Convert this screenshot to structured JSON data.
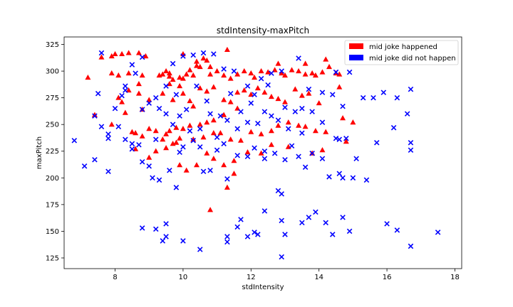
{
  "chart_data": {
    "type": "scatter",
    "title": "stdIntensity-maxPitch",
    "xlabel": "stdIntensity",
    "ylabel": "maxPitch",
    "xlim": [
      6.5,
      18.2
    ],
    "ylim": [
      115,
      332
    ],
    "xticks": [
      8,
      10,
      12,
      14,
      16,
      18
    ],
    "yticks": [
      125,
      150,
      175,
      200,
      225,
      250,
      275,
      300,
      325
    ],
    "legend_position": "top-right",
    "series": [
      {
        "name": "mid joke happened",
        "color": "#ff0000",
        "marker": "triangle",
        "points": [
          [
            7.2,
            294
          ],
          [
            7.4,
            259
          ],
          [
            7.6,
            313
          ],
          [
            7.9,
            314
          ],
          [
            8.0,
            316
          ],
          [
            8.2,
            316
          ],
          [
            8.4,
            317
          ],
          [
            8.7,
            317
          ],
          [
            8.9,
            314
          ],
          [
            7.9,
            298
          ],
          [
            8.1,
            296
          ],
          [
            8.4,
            298
          ],
          [
            8.8,
            296
          ],
          [
            8.7,
            288
          ],
          [
            8.4,
            282
          ],
          [
            8.7,
            279
          ],
          [
            8.1,
            275
          ],
          [
            8.2,
            271
          ],
          [
            8.3,
            261
          ],
          [
            8.8,
            264
          ],
          [
            7.9,
            250
          ],
          [
            8.5,
            243
          ],
          [
            8.6,
            242
          ],
          [
            8.6,
            227
          ],
          [
            8.8,
            239
          ],
          [
            9.0,
            246
          ],
          [
            9.2,
            244
          ],
          [
            9.4,
            236
          ],
          [
            9.2,
            225
          ],
          [
            9.0,
            219
          ],
          [
            9.5,
            228
          ],
          [
            9.7,
            232
          ],
          [
            9.8,
            233
          ],
          [
            9.3,
            296
          ],
          [
            9.4,
            297
          ],
          [
            9.5,
            300
          ],
          [
            9.6,
            298
          ],
          [
            9.6,
            288
          ],
          [
            9.7,
            292
          ],
          [
            9.9,
            294
          ],
          [
            10.0,
            293
          ],
          [
            10.1,
            297
          ],
          [
            10.2,
            301
          ],
          [
            10.3,
            296
          ],
          [
            10.4,
            305
          ],
          [
            10.5,
            304
          ],
          [
            10.6,
            312
          ],
          [
            10.7,
            310
          ],
          [
            10.8,
            304
          ],
          [
            10.8,
            297
          ],
          [
            11.0,
            300
          ],
          [
            11.2,
            296
          ],
          [
            11.4,
            293
          ],
          [
            11.6,
            297
          ],
          [
            11.8,
            300
          ],
          [
            12.0,
            298
          ],
          [
            12.1,
            294
          ],
          [
            12.3,
            300
          ],
          [
            12.5,
            299
          ],
          [
            12.7,
            301
          ],
          [
            12.9,
            298
          ],
          [
            13.0,
            296
          ],
          [
            13.2,
            301
          ],
          [
            13.4,
            300
          ],
          [
            13.6,
            297
          ],
          [
            13.8,
            298
          ],
          [
            13.9,
            296
          ],
          [
            14.1,
            299
          ],
          [
            14.3,
            304
          ],
          [
            14.5,
            298
          ],
          [
            14.6,
            297
          ],
          [
            14.2,
            311
          ],
          [
            9.0,
            273
          ],
          [
            9.4,
            279
          ],
          [
            9.7,
            273
          ],
          [
            9.9,
            286
          ],
          [
            10.0,
            279
          ],
          [
            10.2,
            272
          ],
          [
            10.3,
            267
          ],
          [
            10.5,
            284
          ],
          [
            10.7,
            281
          ],
          [
            10.9,
            285
          ],
          [
            11.2,
            273
          ],
          [
            11.4,
            271
          ],
          [
            11.6,
            280
          ],
          [
            11.8,
            282
          ],
          [
            12.0,
            278
          ],
          [
            12.2,
            284
          ],
          [
            12.4,
            280
          ],
          [
            12.6,
            276
          ],
          [
            12.8,
            274
          ],
          [
            13.0,
            271
          ],
          [
            13.3,
            283
          ],
          [
            13.5,
            277
          ],
          [
            13.7,
            279
          ],
          [
            14.0,
            270
          ],
          [
            14.6,
            285
          ],
          [
            11.6,
            265
          ],
          [
            11.2,
            259
          ],
          [
            10.9,
            254
          ],
          [
            10.7,
            252
          ],
          [
            10.5,
            250
          ],
          [
            10.2,
            249
          ],
          [
            10.0,
            246
          ],
          [
            9.8,
            247
          ],
          [
            9.6,
            244
          ],
          [
            9.5,
            241
          ],
          [
            9.9,
            237
          ],
          [
            10.3,
            236
          ],
          [
            10.6,
            238
          ],
          [
            10.9,
            242
          ],
          [
            11.1,
            242
          ],
          [
            11.4,
            236
          ],
          [
            11.7,
            235
          ],
          [
            12.0,
            243
          ],
          [
            12.3,
            241
          ],
          [
            12.6,
            244
          ],
          [
            12.8,
            249
          ],
          [
            13.1,
            252
          ],
          [
            13.4,
            249
          ],
          [
            13.6,
            248
          ],
          [
            13.9,
            244
          ],
          [
            14.2,
            243
          ],
          [
            14.7,
            256
          ],
          [
            15.0,
            252
          ],
          [
            14.8,
            234
          ],
          [
            13.8,
            223
          ],
          [
            14.1,
            226
          ],
          [
            13.1,
            229
          ],
          [
            12.6,
            231
          ],
          [
            12.3,
            223
          ],
          [
            11.9,
            224
          ],
          [
            11.5,
            216
          ],
          [
            11.2,
            212
          ],
          [
            10.9,
            218
          ],
          [
            10.7,
            223
          ],
          [
            10.4,
            212
          ],
          [
            10.1,
            207
          ],
          [
            9.9,
            212
          ],
          [
            11.5,
            204
          ],
          [
            11.3,
            191
          ],
          [
            10.8,
            170
          ],
          [
            13.6,
            307
          ],
          [
            12.8,
            307
          ],
          [
            11.3,
            320
          ],
          [
            10.4,
            309
          ],
          [
            10.0,
            316
          ],
          [
            9.6,
            295
          ]
        ]
      },
      {
        "name": "mid joke did not happen",
        "color": "#0000ff",
        "marker": "x",
        "points": [
          [
            6.8,
            235
          ],
          [
            7.1,
            211
          ],
          [
            7.4,
            217
          ],
          [
            7.4,
            258
          ],
          [
            7.5,
            279
          ],
          [
            7.6,
            317
          ],
          [
            7.6,
            248
          ],
          [
            7.8,
            241
          ],
          [
            7.8,
            237
          ],
          [
            7.8,
            206
          ],
          [
            8.1,
            248
          ],
          [
            8.2,
            277
          ],
          [
            8.3,
            236
          ],
          [
            8.5,
            232
          ],
          [
            8.5,
            227
          ],
          [
            8.8,
            215
          ],
          [
            8.7,
            231
          ],
          [
            9.0,
            211
          ],
          [
            9.1,
            200
          ],
          [
            9.3,
            198
          ],
          [
            9.6,
            207
          ],
          [
            9.8,
            191
          ],
          [
            9.9,
            224
          ],
          [
            10.0,
            229
          ],
          [
            10.3,
            235
          ],
          [
            10.5,
            229
          ],
          [
            10.6,
            206
          ],
          [
            10.8,
            207
          ],
          [
            11.0,
            226
          ],
          [
            11.2,
            232
          ],
          [
            11.3,
            199
          ],
          [
            11.6,
            221
          ],
          [
            11.9,
            220
          ],
          [
            12.1,
            228
          ],
          [
            12.4,
            225
          ],
          [
            12.7,
            223
          ],
          [
            12.8,
            188
          ],
          [
            12.9,
            185
          ],
          [
            13.0,
            217
          ],
          [
            13.2,
            230
          ],
          [
            13.4,
            220
          ],
          [
            13.6,
            210
          ],
          [
            13.8,
            223
          ],
          [
            14.1,
            218
          ],
          [
            14.3,
            201
          ],
          [
            14.6,
            204
          ],
          [
            14.7,
            200
          ],
          [
            15.0,
            200
          ],
          [
            15.1,
            218
          ],
          [
            15.4,
            198
          ],
          [
            15.7,
            233
          ],
          [
            16.2,
            247
          ],
          [
            16.3,
            275
          ],
          [
            16.6,
            260
          ],
          [
            16.7,
            283
          ],
          [
            16.7,
            233
          ],
          [
            16.7,
            226
          ],
          [
            17.5,
            149
          ],
          [
            16.7,
            136
          ],
          [
            16.3,
            151
          ],
          [
            16.0,
            157
          ],
          [
            14.9,
            150
          ],
          [
            14.7,
            163
          ],
          [
            14.4,
            147
          ],
          [
            14.2,
            158
          ],
          [
            13.9,
            168
          ],
          [
            13.7,
            163
          ],
          [
            13.5,
            158
          ],
          [
            13.0,
            147
          ],
          [
            12.9,
            160
          ],
          [
            12.9,
            126
          ],
          [
            12.4,
            169
          ],
          [
            12.2,
            147
          ],
          [
            12.1,
            149
          ],
          [
            11.9,
            145
          ],
          [
            11.7,
            161
          ],
          [
            11.6,
            154
          ],
          [
            11.3,
            145
          ],
          [
            11.3,
            140
          ],
          [
            10.5,
            133
          ],
          [
            10.0,
            141
          ],
          [
            9.5,
            157
          ],
          [
            9.5,
            145
          ],
          [
            9.4,
            141
          ],
          [
            9.2,
            152
          ],
          [
            8.8,
            153
          ],
          [
            8.8,
            313
          ],
          [
            9.2,
            236
          ],
          [
            9.5,
            260
          ],
          [
            9.7,
            250
          ],
          [
            9.9,
            258
          ],
          [
            10.2,
            244
          ],
          [
            10.5,
            246
          ],
          [
            10.8,
            260
          ],
          [
            11.1,
            258
          ],
          [
            11.3,
            254
          ],
          [
            11.6,
            246
          ],
          [
            11.9,
            252
          ],
          [
            12.2,
            251
          ],
          [
            12.4,
            262
          ],
          [
            12.6,
            258
          ],
          [
            12.8,
            254
          ],
          [
            13.0,
            266
          ],
          [
            13.3,
            262
          ],
          [
            13.5,
            265
          ],
          [
            13.8,
            262
          ],
          [
            14.1,
            252
          ],
          [
            14.5,
            237
          ],
          [
            14.7,
            267
          ],
          [
            15.3,
            275
          ],
          [
            15.6,
            275
          ],
          [
            15.9,
            280
          ],
          [
            14.4,
            278
          ],
          [
            14.1,
            280
          ],
          [
            13.7,
            283
          ],
          [
            13.4,
            312
          ],
          [
            12.9,
            300
          ],
          [
            12.6,
            298
          ],
          [
            12.3,
            293
          ],
          [
            12.1,
            278
          ],
          [
            11.9,
            286
          ],
          [
            11.5,
            300
          ],
          [
            11.2,
            302
          ],
          [
            10.9,
            316
          ],
          [
            10.6,
            317
          ],
          [
            10.3,
            315
          ],
          [
            10.0,
            314
          ],
          [
            9.7,
            307
          ],
          [
            9.5,
            286
          ],
          [
            9.2,
            275
          ],
          [
            9.0,
            270
          ],
          [
            8.8,
            264
          ],
          [
            8.6,
            298
          ],
          [
            8.5,
            306
          ],
          [
            8.3,
            286
          ],
          [
            8.0,
            265
          ],
          [
            14.5,
            299
          ],
          [
            14.9,
            299
          ],
          [
            14.6,
            236
          ],
          [
            12.5,
            287
          ],
          [
            12.0,
            270
          ],
          [
            11.7,
            262
          ],
          [
            11.4,
            279
          ],
          [
            10.4,
            286
          ],
          [
            10.1,
            264
          ],
          [
            9.8,
            278
          ],
          [
            8.3,
            282
          ],
          [
            9.3,
            265
          ],
          [
            10.7,
            272
          ],
          [
            11.0,
            238
          ],
          [
            12.4,
            218
          ],
          [
            13.1,
            246
          ],
          [
            13.5,
            242
          ],
          [
            14.8,
            237
          ]
        ]
      }
    ]
  }
}
